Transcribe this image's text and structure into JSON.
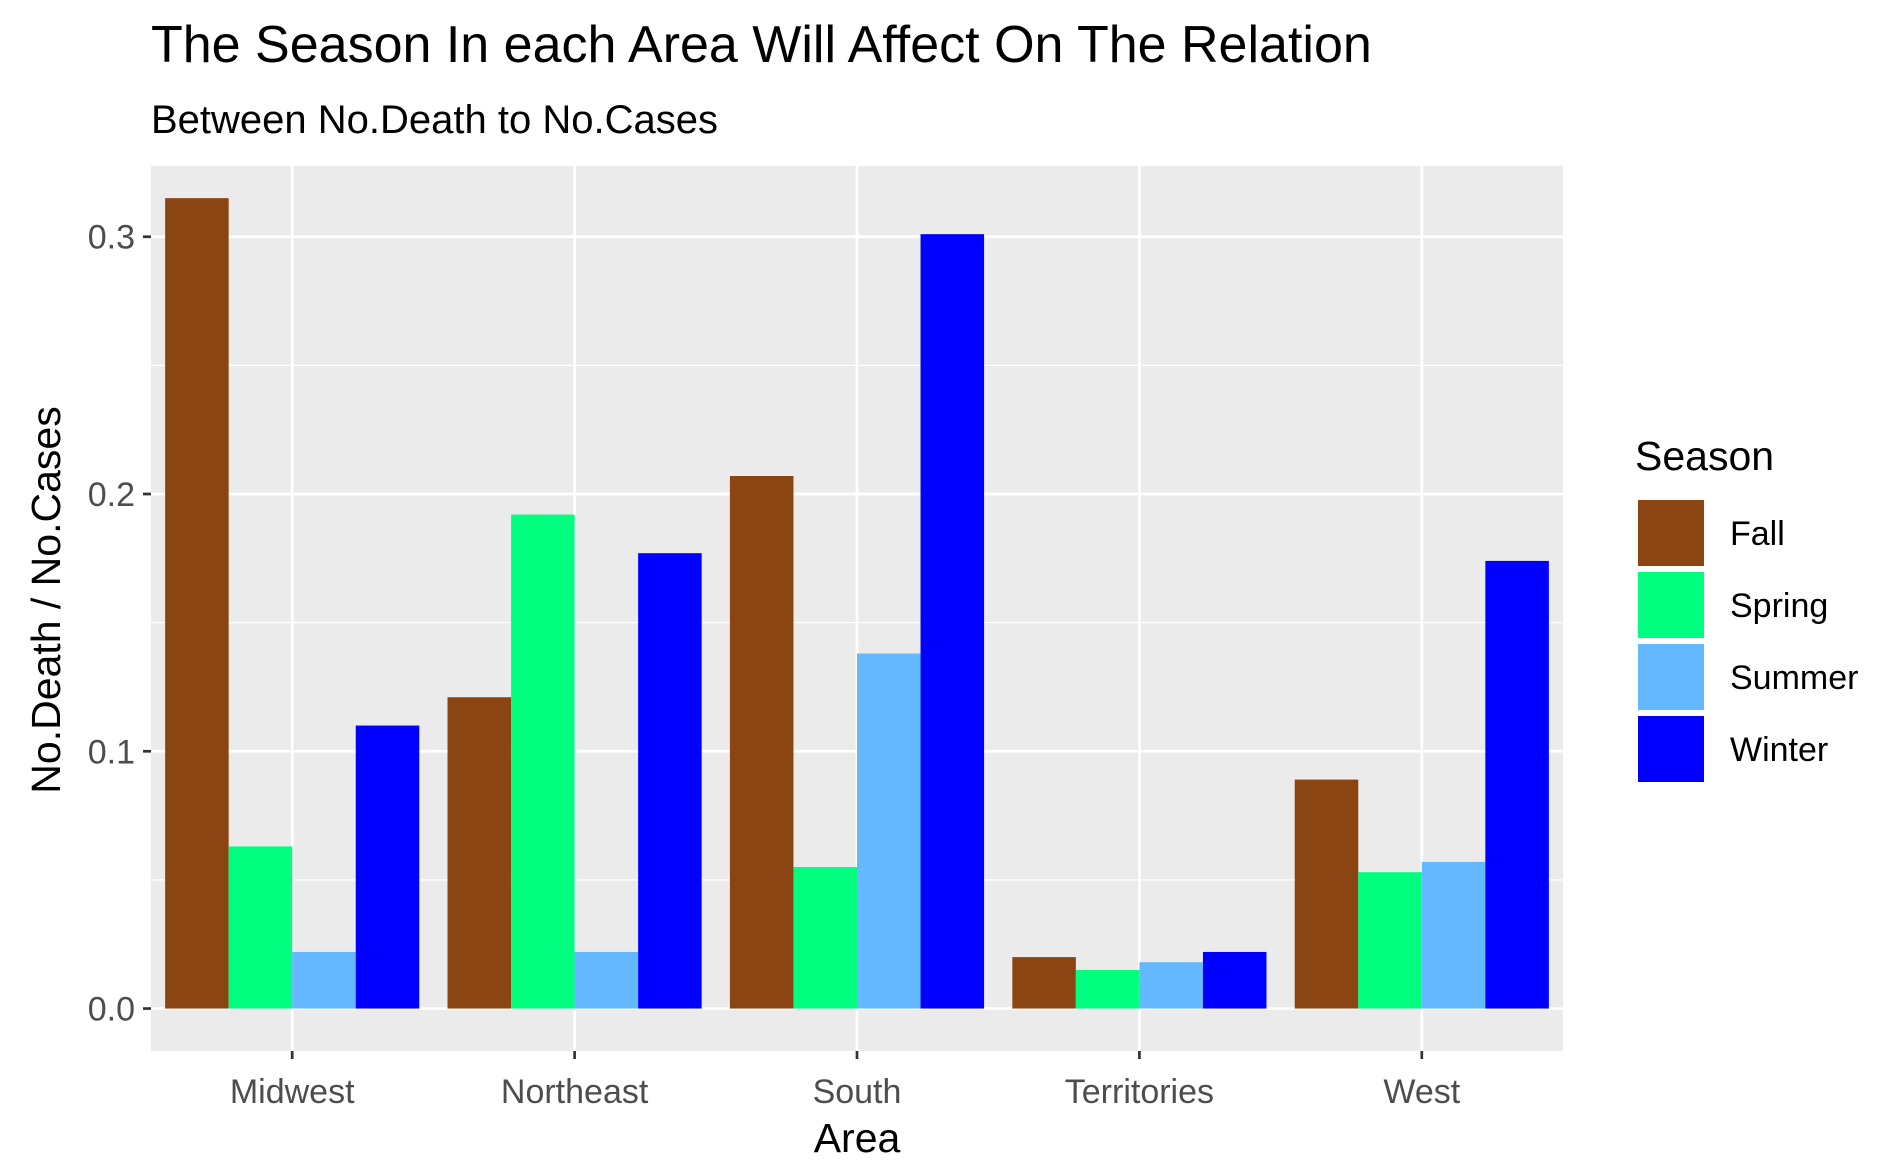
{
  "chart_data": {
    "type": "bar",
    "title": "The Season In each Area Will Affect On The Relation",
    "subtitle": "Between No.Death to No.Cases",
    "xlabel": "Area",
    "ylabel": "No.Death / No.Cases",
    "ylim": [
      -0.0165,
      0.3275
    ],
    "yticks": [
      0.0,
      0.1,
      0.2,
      0.3
    ],
    "ytick_labels": [
      "0.0",
      "0.1",
      "0.2",
      "0.3"
    ],
    "categories": [
      "Midwest",
      "Northeast",
      "South",
      "Territories",
      "West"
    ],
    "series": [
      {
        "name": "Fall",
        "color": "#8B4513",
        "values": [
          0.315,
          0.121,
          0.207,
          0.02,
          0.089
        ]
      },
      {
        "name": "Spring",
        "color": "#00FF7F",
        "values": [
          0.063,
          0.192,
          0.055,
          0.015,
          0.053
        ]
      },
      {
        "name": "Summer",
        "color": "#63B8FF",
        "values": [
          0.022,
          0.022,
          0.138,
          0.018,
          0.057
        ]
      },
      {
        "name": "Winter",
        "color": "#0000FF",
        "values": [
          0.11,
          0.177,
          0.301,
          0.022,
          0.174
        ]
      }
    ],
    "legend": {
      "title": "Season",
      "position": "right"
    },
    "grid": true,
    "panel_background": "#EBEBEB",
    "grid_color": "#FFFFFF"
  }
}
